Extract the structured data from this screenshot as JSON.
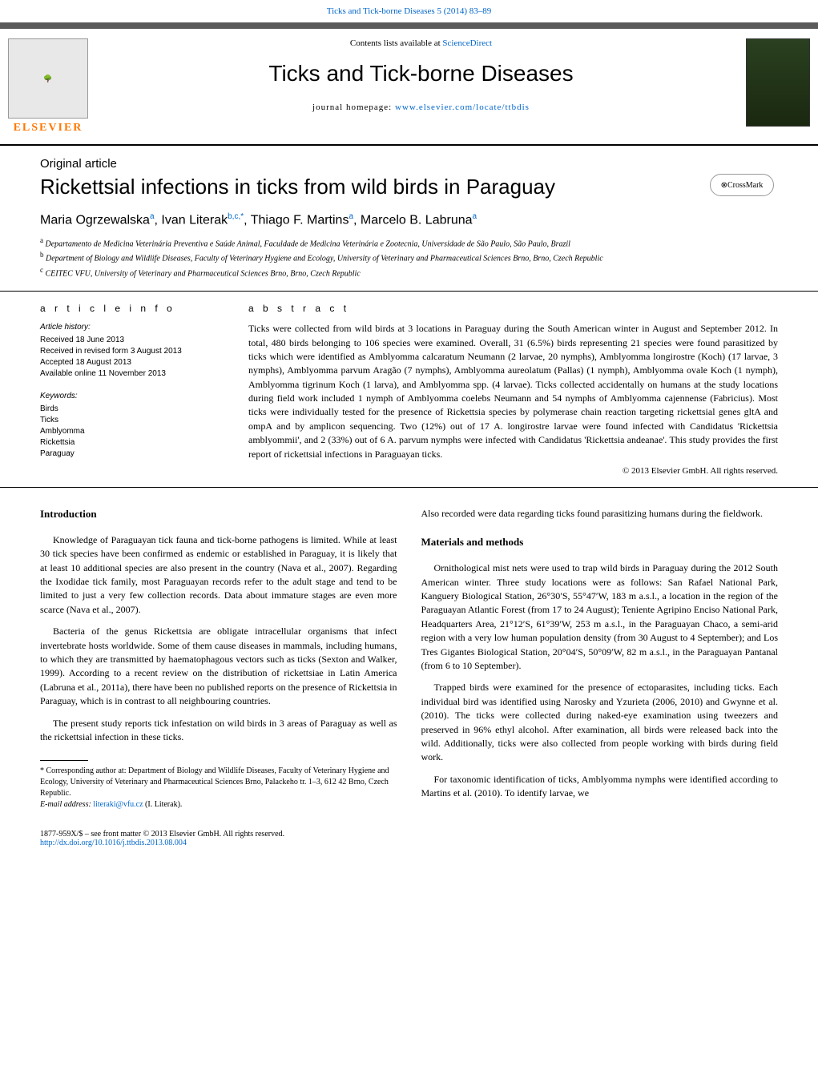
{
  "header": {
    "citation": "Ticks and Tick-borne Diseases 5 (2014) 83–89",
    "contents_prefix": "Contents lists available at ",
    "contents_link": "ScienceDirect",
    "journal_title": "Ticks and Tick-borne Diseases",
    "homepage_prefix": "journal homepage: ",
    "homepage_url": "www.elsevier.com/locate/ttbdis",
    "publisher": "ELSEVIER",
    "crossmark": "CrossMark"
  },
  "article": {
    "type": "Original article",
    "title": "Rickettsial infections in ticks from wild birds in Paraguay",
    "authors_html": "Maria Ogrzewalska<sup>a</sup>, Ivan Literak<sup>b,c,*</sup>, Thiago F. Martins<sup>a</sup>, Marcelo B. Labruna<sup>a</sup>",
    "affiliations": [
      "a Departamento de Medicina Veterinária Preventiva e Saúde Animal, Faculdade de Medicina Veterinária e Zootecnia, Universidade de São Paulo, São Paulo, Brazil",
      "b Department of Biology and Wildlife Diseases, Faculty of Veterinary Hygiene and Ecology, University of Veterinary and Pharmaceutical Sciences Brno, Brno, Czech Republic",
      "c CEITEC VFU, University of Veterinary and Pharmaceutical Sciences Brno, Brno, Czech Republic"
    ]
  },
  "info": {
    "header": "a r t i c l e   i n f o",
    "history_label": "Article history:",
    "history": [
      "Received 18 June 2013",
      "Received in revised form 3 August 2013",
      "Accepted 18 August 2013",
      "Available online 11 November 2013"
    ],
    "keywords_label": "Keywords:",
    "keywords": [
      "Birds",
      "Ticks",
      "Amblyomma",
      "Rickettsia",
      "Paraguay"
    ]
  },
  "abstract": {
    "header": "a b s t r a c t",
    "text": "Ticks were collected from wild birds at 3 locations in Paraguay during the South American winter in August and September 2012. In total, 480 birds belonging to 106 species were examined. Overall, 31 (6.5%) birds representing 21 species were found parasitized by ticks which were identified as Amblyomma calcaratum Neumann (2 larvae, 20 nymphs), Amblyomma longirostre (Koch) (17 larvae, 3 nymphs), Amblyomma parvum Aragão (7 nymphs), Amblyomma aureolatum (Pallas) (1 nymph), Amblyomma ovale Koch (1 nymph), Amblyomma tigrinum Koch (1 larva), and Amblyomma spp. (4 larvae). Ticks collected accidentally on humans at the study locations during field work included 1 nymph of Amblyomma coelebs Neumann and 54 nymphs of Amblyomma cajennense (Fabricius). Most ticks were individually tested for the presence of Rickettsia species by polymerase chain reaction targeting rickettsial genes gltA and ompA and by amplicon sequencing. Two (12%) out of 17 A. longirostre larvae were found infected with Candidatus 'Rickettsia amblyommii', and 2 (33%) out of 6 A. parvum nymphs were infected with Candidatus 'Rickettsia andeanae'. This study provides the first report of rickettsial infections in Paraguayan ticks.",
    "copyright": "© 2013 Elsevier GmbH. All rights reserved."
  },
  "body": {
    "left": {
      "heading": "Introduction",
      "p1": "Knowledge of Paraguayan tick fauna and tick-borne pathogens is limited. While at least 30 tick species have been confirmed as endemic or established in Paraguay, it is likely that at least 10 additional species are also present in the country (Nava et al., 2007). Regarding the Ixodidae tick family, most Paraguayan records refer to the adult stage and tend to be limited to just a very few collection records. Data about immature stages are even more scarce (Nava et al., 2007).",
      "p2": "Bacteria of the genus Rickettsia are obligate intracellular organisms that infect invertebrate hosts worldwide. Some of them cause diseases in mammals, including humans, to which they are transmitted by haematophagous vectors such as ticks (Sexton and Walker, 1999). According to a recent review on the distribution of rickettsiae in Latin America (Labruna et al., 2011a), there have been no published reports on the presence of Rickettsia in Paraguay, which is in contrast to all neighbouring countries.",
      "p3": "The present study reports tick infestation on wild birds in 3 areas of Paraguay as well as the rickettsial infection in these ticks.",
      "footnote_corr": "* Corresponding author at: Department of Biology and Wildlife Diseases, Faculty of Veterinary Hygiene and Ecology, University of Veterinary and Pharmaceutical Sciences Brno, Palackeho tr. 1–3, 612 42 Brno, Czech Republic.",
      "footnote_email_label": "E-mail address: ",
      "footnote_email": "literaki@vfu.cz",
      "footnote_email_suffix": " (I. Literak)."
    },
    "right": {
      "p0": "Also recorded were data regarding ticks found parasitizing humans during the fieldwork.",
      "heading": "Materials and methods",
      "p1": "Ornithological mist nets were used to trap wild birds in Paraguay during the 2012 South American winter. Three study locations were as follows: San Rafael National Park, Kanguery Biological Station, 26°30′S, 55°47′W, 183 m a.s.l., a location in the region of the Paraguayan Atlantic Forest (from 17 to 24 August); Teniente Agripino Enciso National Park, Headquarters Area, 21°12′S, 61°39′W, 253 m a.s.l., in the Paraguayan Chaco, a semi-arid region with a very low human population density (from 30 August to 4 September); and Los Tres Gigantes Biological Station, 20°04′S, 50°09′W, 82 m a.s.l., in the Paraguayan Pantanal (from 6 to 10 September).",
      "p2": "Trapped birds were examined for the presence of ectoparasites, including ticks. Each individual bird was identified using Narosky and Yzurieta (2006, 2010) and Gwynne et al. (2010). The ticks were collected during naked-eye examination using tweezers and preserved in 96% ethyl alcohol. After examination, all birds were released back into the wild. Additionally, ticks were also collected from people working with birds during field work.",
      "p3": "For taxonomic identification of ticks, Amblyomma nymphs were identified according to Martins et al. (2010). To identify larvae, we"
    }
  },
  "footer": {
    "issn_line": "1877-959X/$ – see front matter © 2013 Elsevier GmbH. All rights reserved.",
    "doi": "http://dx.doi.org/10.1016/j.ttbdis.2013.08.004"
  },
  "colors": {
    "link": "#0066cc",
    "publisher": "#ff7700",
    "header_bar": "#5a5a5a"
  }
}
